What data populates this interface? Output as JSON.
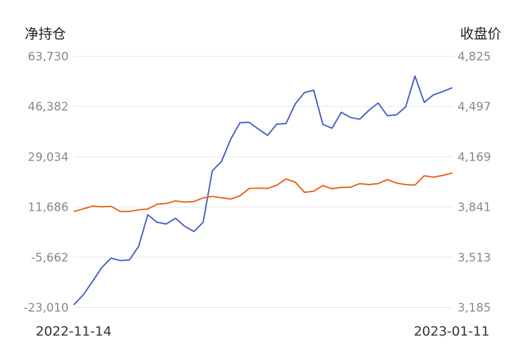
{
  "chart_data": {
    "type": "line",
    "left_axis_title": "净持仓",
    "right_axis_title": "收盘价",
    "left_ticks": [
      "63,730",
      "46,382",
      "29,034",
      "11,686",
      "-5,662",
      "-23,010"
    ],
    "right_ticks": [
      "4,825",
      "4,497",
      "4,169",
      "3,841",
      "3,513",
      "3,185"
    ],
    "left_range": [
      -23010,
      63730
    ],
    "right_range": [
      3185,
      4825
    ],
    "x_start_label": "2022-11-14",
    "x_end_label": "2023-01-11",
    "grid": true,
    "series": [
      {
        "axis": "left",
        "color": "#4a5fc1",
        "values": [
          -22000,
          -18600,
          -14000,
          -9200,
          -6000,
          -6800,
          -6600,
          -1900,
          9000,
          6400,
          5800,
          7800,
          5000,
          3200,
          6400,
          24200,
          27400,
          35100,
          40800,
          40900,
          38600,
          36400,
          40300,
          40500,
          47300,
          51200,
          52000,
          40200,
          38900,
          44400,
          42600,
          42000,
          45100,
          47600,
          43200,
          43500,
          46300,
          56900,
          47800,
          50400,
          51500,
          52800
        ]
      },
      {
        "axis": "right",
        "color": "#e8621c",
        "values": [
          3812,
          3829,
          3847,
          3842,
          3845,
          3812,
          3812,
          3822,
          3828,
          3859,
          3864,
          3881,
          3873,
          3877,
          3900,
          3910,
          3901,
          3893,
          3914,
          3962,
          3964,
          3962,
          3983,
          4024,
          4003,
          3937,
          3944,
          3981,
          3960,
          3969,
          3970,
          3994,
          3987,
          3994,
          4020,
          3997,
          3987,
          3984,
          4045,
          4036,
          4047,
          4062
        ]
      }
    ]
  }
}
